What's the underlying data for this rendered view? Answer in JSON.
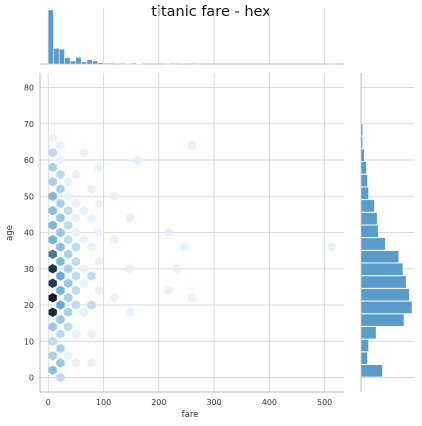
{
  "chart_data": {
    "type": "jointplot-hex",
    "title": "titanic fare - hex",
    "xlabel": "fare",
    "ylabel": "age",
    "xlim": [
      -15,
      535
    ],
    "ylim": [
      -4,
      84
    ],
    "xticks": [
      0,
      100,
      200,
      300,
      400,
      500
    ],
    "yticks": [
      0,
      10,
      20,
      30,
      40,
      50,
      60,
      70,
      80
    ],
    "grid": true,
    "hex_cells": [
      {
        "x": 8,
        "y": 18,
        "count": 20
      },
      {
        "x": 8,
        "y": 22,
        "count": 22
      },
      {
        "x": 8,
        "y": 26,
        "count": 18
      },
      {
        "x": 8,
        "y": 30,
        "count": 19
      },
      {
        "x": 8,
        "y": 34,
        "count": 12
      },
      {
        "x": 8,
        "y": 38,
        "count": 7
      },
      {
        "x": 8,
        "y": 42,
        "count": 6
      },
      {
        "x": 8,
        "y": 46,
        "count": 5
      },
      {
        "x": 8,
        "y": 50,
        "count": 6
      },
      {
        "x": 8,
        "y": 54,
        "count": 3
      },
      {
        "x": 8,
        "y": 58,
        "count": 3
      },
      {
        "x": 8,
        "y": 62,
        "count": 2
      },
      {
        "x": 8,
        "y": 66,
        "count": 1
      },
      {
        "x": 8,
        "y": 14,
        "count": 4
      },
      {
        "x": 8,
        "y": 10,
        "count": 2
      },
      {
        "x": 8,
        "y": 6,
        "count": 3
      },
      {
        "x": 8,
        "y": 2,
        "count": 5
      },
      {
        "x": 22,
        "y": 20,
        "count": 8
      },
      {
        "x": 22,
        "y": 24,
        "count": 7
      },
      {
        "x": 22,
        "y": 28,
        "count": 8
      },
      {
        "x": 22,
        "y": 32,
        "count": 6
      },
      {
        "x": 22,
        "y": 36,
        "count": 5
      },
      {
        "x": 22,
        "y": 40,
        "count": 4
      },
      {
        "x": 22,
        "y": 44,
        "count": 4
      },
      {
        "x": 22,
        "y": 48,
        "count": 3
      },
      {
        "x": 22,
        "y": 52,
        "count": 3
      },
      {
        "x": 22,
        "y": 56,
        "count": 2
      },
      {
        "x": 22,
        "y": 60,
        "count": 1
      },
      {
        "x": 22,
        "y": 64,
        "count": 1
      },
      {
        "x": 22,
        "y": 16,
        "count": 4
      },
      {
        "x": 22,
        "y": 12,
        "count": 2
      },
      {
        "x": 22,
        "y": 8,
        "count": 3
      },
      {
        "x": 22,
        "y": 4,
        "count": 4
      },
      {
        "x": 22,
        "y": 0,
        "count": 2
      },
      {
        "x": 36,
        "y": 18,
        "count": 3
      },
      {
        "x": 36,
        "y": 22,
        "count": 3
      },
      {
        "x": 36,
        "y": 26,
        "count": 4
      },
      {
        "x": 36,
        "y": 30,
        "count": 3
      },
      {
        "x": 36,
        "y": 34,
        "count": 3
      },
      {
        "x": 36,
        "y": 38,
        "count": 2
      },
      {
        "x": 36,
        "y": 42,
        "count": 2
      },
      {
        "x": 36,
        "y": 46,
        "count": 2
      },
      {
        "x": 36,
        "y": 50,
        "count": 1
      },
      {
        "x": 36,
        "y": 54,
        "count": 1
      },
      {
        "x": 36,
        "y": 14,
        "count": 2
      },
      {
        "x": 36,
        "y": 6,
        "count": 1
      },
      {
        "x": 50,
        "y": 20,
        "count": 2
      },
      {
        "x": 50,
        "y": 24,
        "count": 2
      },
      {
        "x": 50,
        "y": 28,
        "count": 2
      },
      {
        "x": 50,
        "y": 32,
        "count": 2
      },
      {
        "x": 50,
        "y": 36,
        "count": 2
      },
      {
        "x": 50,
        "y": 40,
        "count": 1
      },
      {
        "x": 50,
        "y": 44,
        "count": 1
      },
      {
        "x": 50,
        "y": 48,
        "count": 1
      },
      {
        "x": 50,
        "y": 56,
        "count": 1
      },
      {
        "x": 50,
        "y": 12,
        "count": 1
      },
      {
        "x": 50,
        "y": 4,
        "count": 1
      },
      {
        "x": 64,
        "y": 18,
        "count": 1
      },
      {
        "x": 64,
        "y": 26,
        "count": 1
      },
      {
        "x": 64,
        "y": 30,
        "count": 1
      },
      {
        "x": 64,
        "y": 38,
        "count": 1
      },
      {
        "x": 64,
        "y": 46,
        "count": 1
      },
      {
        "x": 64,
        "y": 62,
        "count": 1
      },
      {
        "x": 78,
        "y": 20,
        "count": 2
      },
      {
        "x": 78,
        "y": 28,
        "count": 2
      },
      {
        "x": 78,
        "y": 36,
        "count": 1
      },
      {
        "x": 78,
        "y": 44,
        "count": 1
      },
      {
        "x": 78,
        "y": 52,
        "count": 1
      },
      {
        "x": 78,
        "y": 12,
        "count": 1
      },
      {
        "x": 78,
        "y": 4,
        "count": 1
      },
      {
        "x": 92,
        "y": 24,
        "count": 1
      },
      {
        "x": 92,
        "y": 32,
        "count": 1
      },
      {
        "x": 92,
        "y": 40,
        "count": 1
      },
      {
        "x": 92,
        "y": 48,
        "count": 1
      },
      {
        "x": 92,
        "y": 58,
        "count": 1
      },
      {
        "x": 120,
        "y": 22,
        "count": 1
      },
      {
        "x": 120,
        "y": 38,
        "count": 1
      },
      {
        "x": 120,
        "y": 50,
        "count": 1
      },
      {
        "x": 148,
        "y": 30,
        "count": 1
      },
      {
        "x": 148,
        "y": 44,
        "count": 1
      },
      {
        "x": 148,
        "y": 18,
        "count": 1
      },
      {
        "x": 162,
        "y": 60,
        "count": 1
      },
      {
        "x": 218,
        "y": 24,
        "count": 1
      },
      {
        "x": 218,
        "y": 40,
        "count": 1
      },
      {
        "x": 232,
        "y": 30,
        "count": 1
      },
      {
        "x": 246,
        "y": 36,
        "count": 1
      },
      {
        "x": 260,
        "y": 22,
        "count": 1
      },
      {
        "x": 260,
        "y": 64,
        "count": 1
      },
      {
        "x": 512,
        "y": 36,
        "count": 1
      }
    ],
    "fare_histogram": {
      "bins": [
        {
          "x0": 0,
          "x1": 10,
          "count": 330
        },
        {
          "x0": 10,
          "x1": 20,
          "count": 95
        },
        {
          "x0": 20,
          "x1": 30,
          "count": 90
        },
        {
          "x0": 30,
          "x1": 40,
          "count": 38
        },
        {
          "x0": 40,
          "x1": 50,
          "count": 18
        },
        {
          "x0": 50,
          "x1": 60,
          "count": 40
        },
        {
          "x0": 60,
          "x1": 70,
          "count": 12
        },
        {
          "x0": 70,
          "x1": 80,
          "count": 25
        },
        {
          "x0": 80,
          "x1": 90,
          "count": 18
        },
        {
          "x0": 90,
          "x1": 100,
          "count": 8
        },
        {
          "x0": 100,
          "x1": 110,
          "count": 4
        },
        {
          "x0": 110,
          "x1": 120,
          "count": 5
        },
        {
          "x0": 130,
          "x1": 140,
          "count": 4
        },
        {
          "x0": 140,
          "x1": 150,
          "count": 3
        },
        {
          "x0": 150,
          "x1": 160,
          "count": 5
        },
        {
          "x0": 160,
          "x1": 170,
          "count": 2
        },
        {
          "x0": 210,
          "x1": 220,
          "count": 3
        },
        {
          "x0": 220,
          "x1": 230,
          "count": 4
        },
        {
          "x0": 240,
          "x1": 250,
          "count": 3
        },
        {
          "x0": 260,
          "x1": 270,
          "count": 4
        },
        {
          "x0": 510,
          "x1": 520,
          "count": 3
        }
      ]
    },
    "age_histogram": {
      "bins": [
        {
          "y0": 0,
          "y1": 3.5,
          "count": 40
        },
        {
          "y0": 3.5,
          "y1": 7,
          "count": 12
        },
        {
          "y0": 7,
          "y1": 10.5,
          "count": 14
        },
        {
          "y0": 10.5,
          "y1": 14,
          "count": 28
        },
        {
          "y0": 14,
          "y1": 17.5,
          "count": 80
        },
        {
          "y0": 17.5,
          "y1": 21,
          "count": 95
        },
        {
          "y0": 21,
          "y1": 24.5,
          "count": 90
        },
        {
          "y0": 24.5,
          "y1": 28,
          "count": 84
        },
        {
          "y0": 28,
          "y1": 31.5,
          "count": 78
        },
        {
          "y0": 31.5,
          "y1": 35,
          "count": 70
        },
        {
          "y0": 35,
          "y1": 38.5,
          "count": 45
        },
        {
          "y0": 38.5,
          "y1": 42,
          "count": 32
        },
        {
          "y0": 42,
          "y1": 45.5,
          "count": 30
        },
        {
          "y0": 45.5,
          "y1": 49,
          "count": 25
        },
        {
          "y0": 49,
          "y1": 52.5,
          "count": 14
        },
        {
          "y0": 52.5,
          "y1": 56,
          "count": 12
        },
        {
          "y0": 56,
          "y1": 59.5,
          "count": 10
        },
        {
          "y0": 59.5,
          "y1": 63,
          "count": 6
        },
        {
          "y0": 63,
          "y1": 66.5,
          "count": 3
        },
        {
          "y0": 66.5,
          "y1": 70,
          "count": 3
        }
      ]
    },
    "colors": {
      "hex_low": "#e8f2fb",
      "hex_mid": "#6aaed6",
      "hex_high": "#0d1b2a",
      "marginal_bar": "#5b9bc9",
      "grid": "#dadada"
    }
  }
}
